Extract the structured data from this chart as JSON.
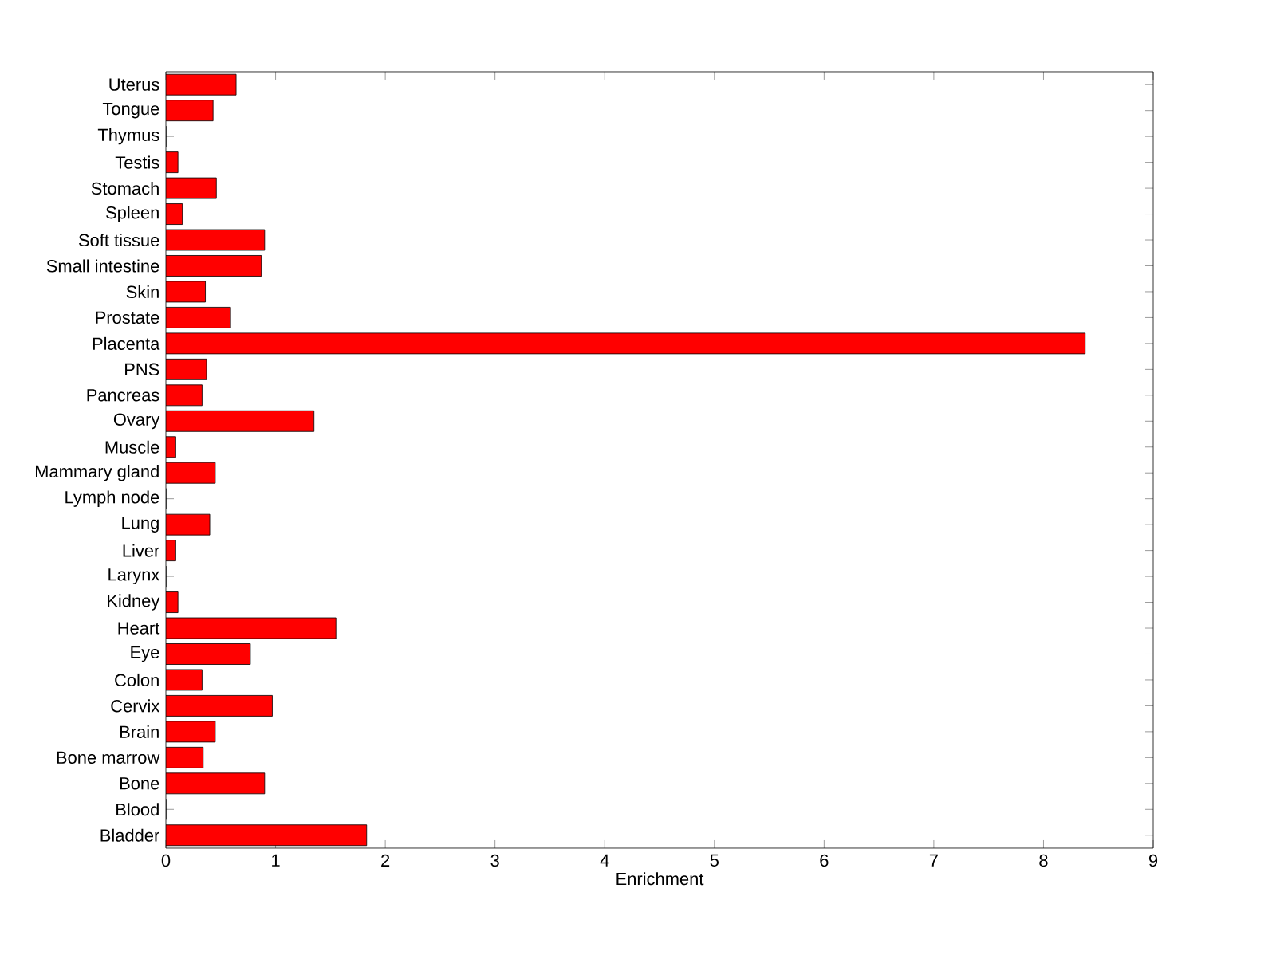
{
  "chart_data": {
    "type": "bar",
    "orientation": "horizontal",
    "xlabel": "Enrichment",
    "categories": [
      "Uterus",
      "Tongue",
      "Thymus",
      "Testis",
      "Stomach",
      "Spleen",
      "Soft tissue",
      "Small intestine",
      "Skin",
      "Prostate",
      "Placenta",
      "PNS",
      "Pancreas",
      "Ovary",
      "Muscle",
      "Mammary gland",
      "Lymph node",
      "Lung",
      "Liver",
      "Larynx",
      "Kidney",
      "Heart",
      "Eye",
      "Colon",
      "Cervix",
      "Brain",
      "Bone marrow",
      "Bone",
      "Blood",
      "Bladder"
    ],
    "values": [
      0.64,
      0.43,
      0,
      0.11,
      0.46,
      0.15,
      0.9,
      0.87,
      0.36,
      0.59,
      8.38,
      0.37,
      0.33,
      1.35,
      0.09,
      0.45,
      0,
      0.4,
      0.09,
      0,
      0.11,
      1.55,
      0.77,
      0.33,
      0.97,
      0.45,
      0.34,
      0.9,
      0,
      1.83
    ],
    "color": "#ff0000",
    "xlim": [
      0,
      9
    ],
    "xticks": [
      0,
      1,
      2,
      3,
      4,
      5,
      6,
      7,
      8,
      9
    ],
    "grid": false
  }
}
